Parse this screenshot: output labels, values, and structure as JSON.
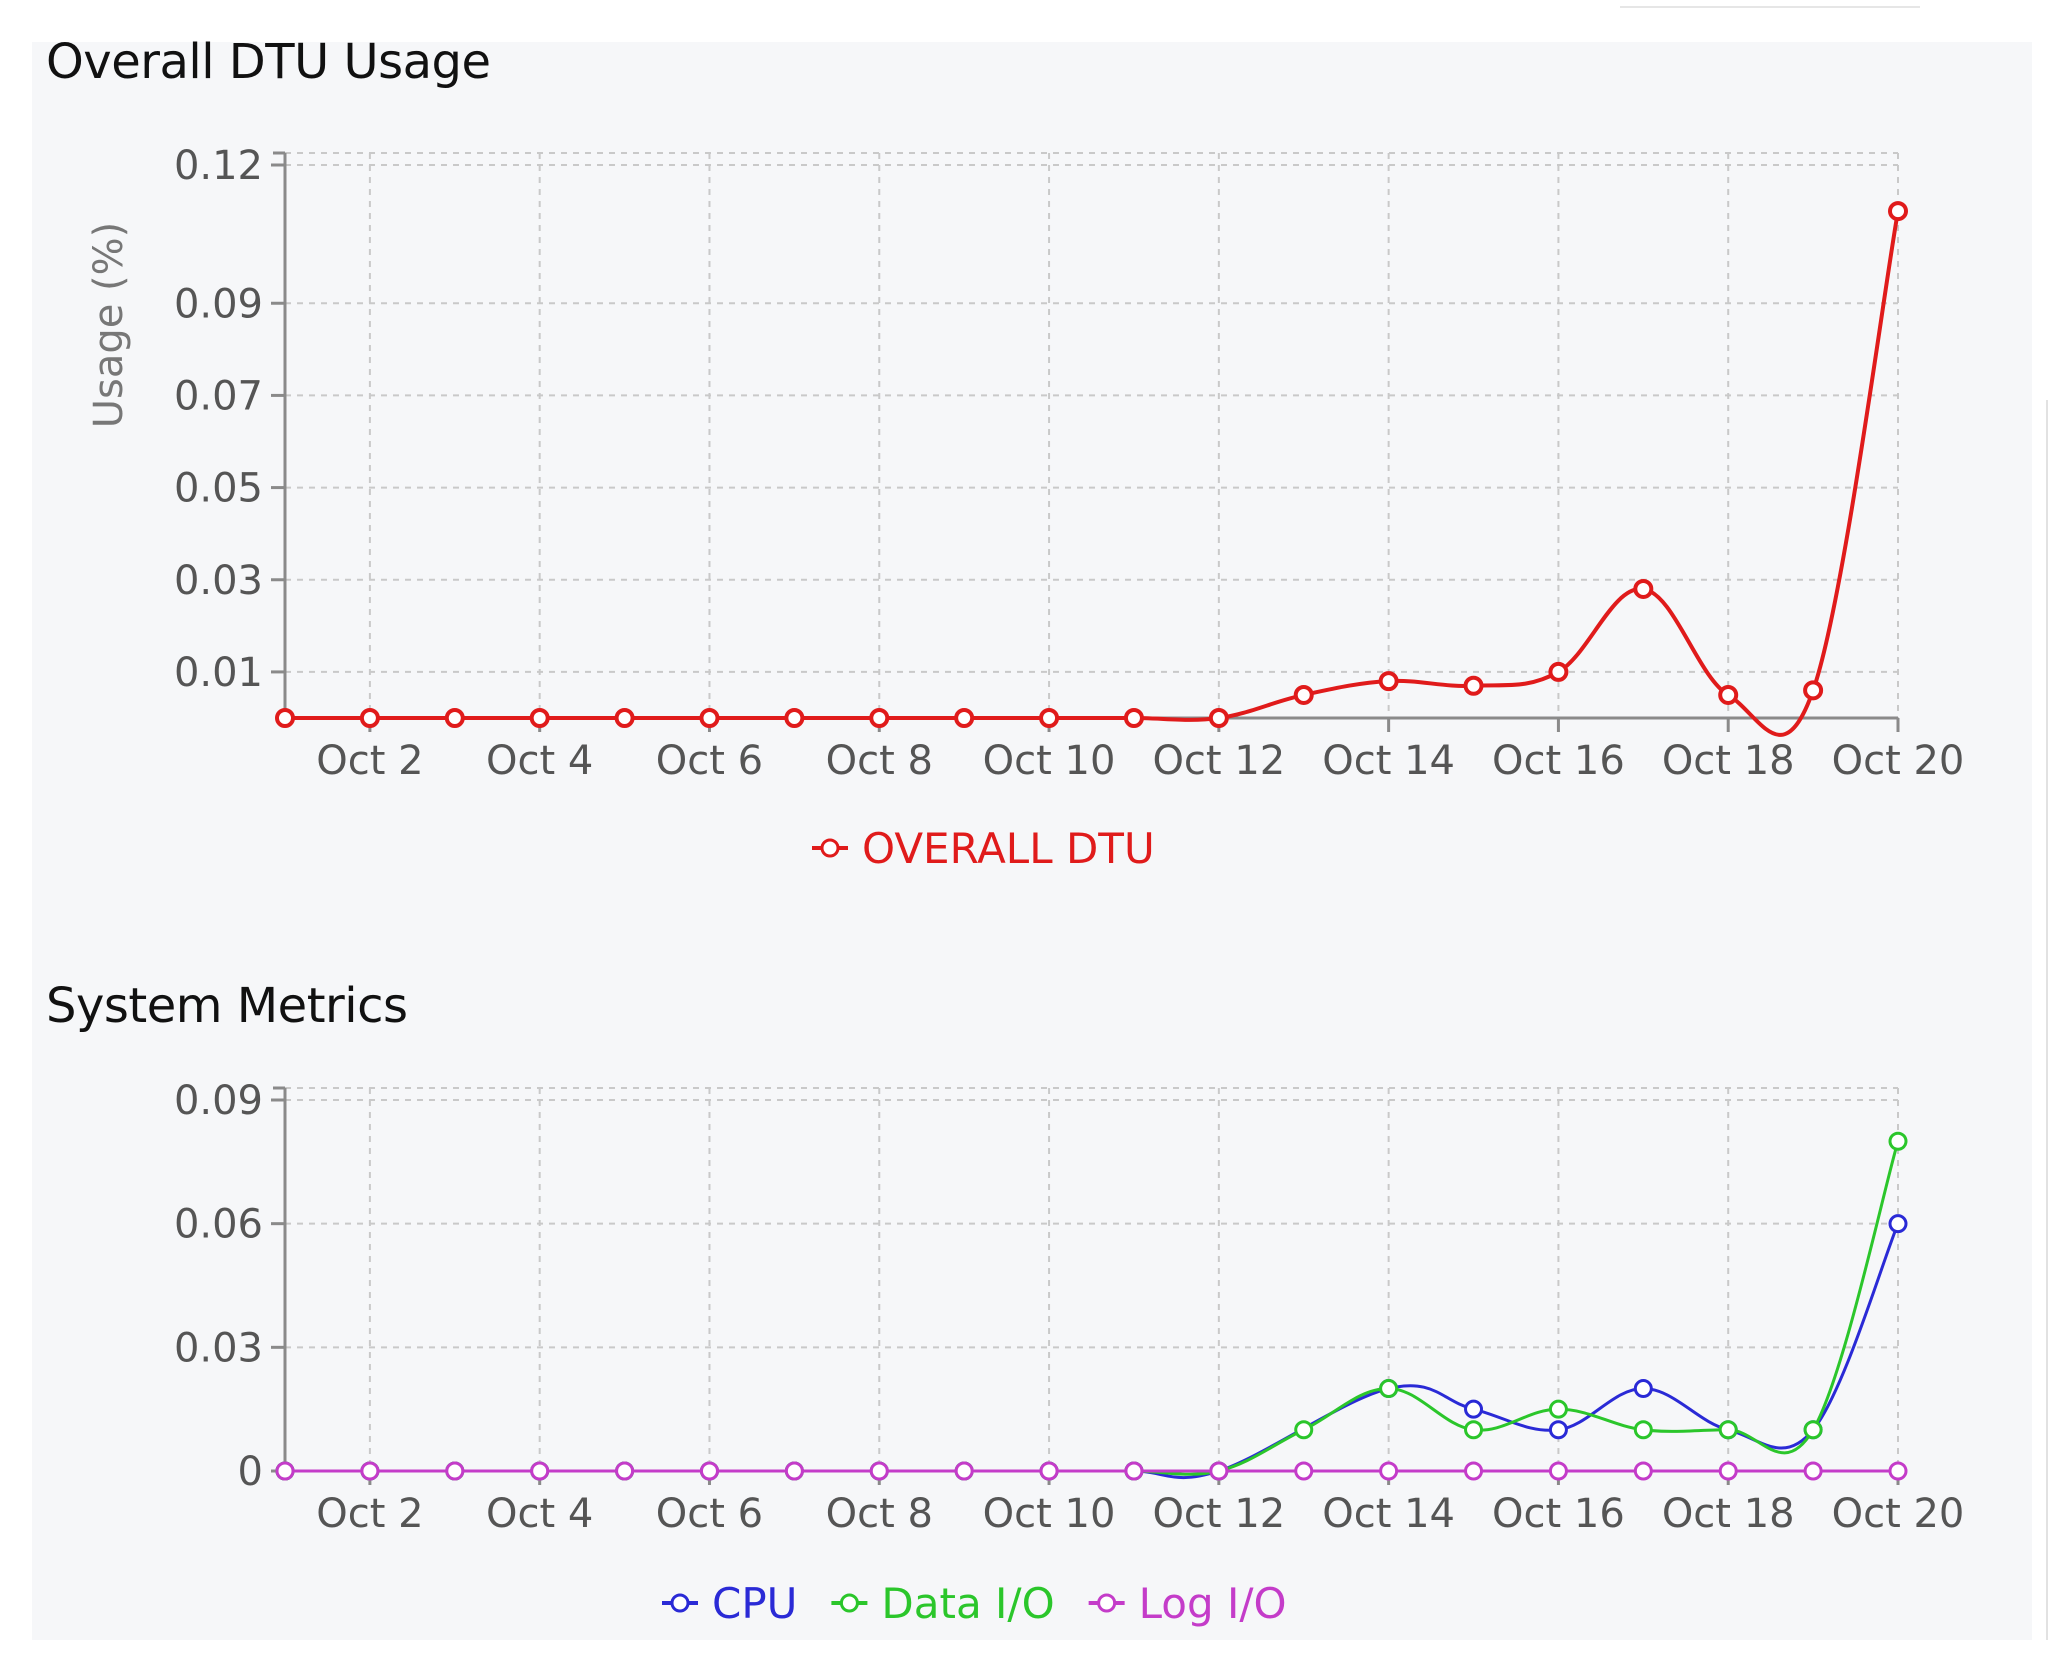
{
  "charts": [
    {
      "title": "Overall DTU Usage",
      "chart_data": {
        "type": "line",
        "x": [
          "Oct 1",
          "Oct 2",
          "Oct 3",
          "Oct 4",
          "Oct 5",
          "Oct 6",
          "Oct 7",
          "Oct 8",
          "Oct 9",
          "Oct 10",
          "Oct 11",
          "Oct 12",
          "Oct 13",
          "Oct 14",
          "Oct 15",
          "Oct 16",
          "Oct 17",
          "Oct 18",
          "Oct 19",
          "Oct 20"
        ],
        "x_tick_labels": [
          "Oct 2",
          "Oct 4",
          "Oct 6",
          "Oct 8",
          "Oct 10",
          "Oct 12",
          "Oct 14",
          "Oct 16",
          "Oct 18",
          "Oct 20"
        ],
        "y_tick_labels": [
          "0.12",
          "0.09",
          "0.07",
          "0.05",
          "0.03",
          "0.01"
        ],
        "y_ticks": [
          0.12,
          0.09,
          0.07,
          0.05,
          0.03,
          0.01
        ],
        "ylim": [
          0,
          0.12
        ],
        "ylabel": "Usage (%)",
        "grid": true,
        "legend_position": "bottom",
        "series": [
          {
            "name": "OVERALL DTU",
            "color": "#e01b1b",
            "values": [
              0,
              0,
              0,
              0,
              0,
              0,
              0,
              0,
              0,
              0,
              0,
              0,
              0.005,
              0.008,
              0.007,
              0.01,
              0.028,
              0.005,
              0.006,
              0.11
            ]
          }
        ]
      }
    },
    {
      "title": "System Metrics",
      "chart_data": {
        "type": "line",
        "x": [
          "Oct 1",
          "Oct 2",
          "Oct 3",
          "Oct 4",
          "Oct 5",
          "Oct 6",
          "Oct 7",
          "Oct 8",
          "Oct 9",
          "Oct 10",
          "Oct 11",
          "Oct 12",
          "Oct 13",
          "Oct 14",
          "Oct 15",
          "Oct 16",
          "Oct 17",
          "Oct 18",
          "Oct 19",
          "Oct 20"
        ],
        "x_tick_labels": [
          "Oct 2",
          "Oct 4",
          "Oct 6",
          "Oct 8",
          "Oct 10",
          "Oct 12",
          "Oct 14",
          "Oct 16",
          "Oct 18",
          "Oct 20"
        ],
        "y_tick_labels": [
          "0.09",
          "0.06",
          "0.03",
          "0"
        ],
        "y_ticks": [
          0.09,
          0.06,
          0.03,
          0
        ],
        "ylim": [
          0,
          0.09
        ],
        "ylabel": "",
        "grid": true,
        "legend_position": "bottom",
        "series": [
          {
            "name": "CPU",
            "color": "#2a2ad6",
            "values": [
              0,
              0,
              0,
              0,
              0,
              0,
              0,
              0,
              0,
              0,
              0,
              0,
              null,
              0.02,
              0.015,
              0.01,
              0.02,
              0.01,
              0.01,
              0.06
            ]
          },
          {
            "name": "Data I/O",
            "color": "#2bc62b",
            "values": [
              0,
              0,
              0,
              0,
              0,
              0,
              0,
              0,
              0,
              0,
              0,
              0,
              0.01,
              0.02,
              0.01,
              0.015,
              0.01,
              0.01,
              0.01,
              0.08
            ]
          },
          {
            "name": "Log I/O",
            "color": "#c43cc9",
            "values": [
              0,
              0,
              0,
              0,
              0,
              0,
              0,
              0,
              0,
              0,
              0,
              0,
              0,
              0,
              0,
              0,
              0,
              0,
              0,
              0
            ]
          }
        ]
      }
    }
  ]
}
